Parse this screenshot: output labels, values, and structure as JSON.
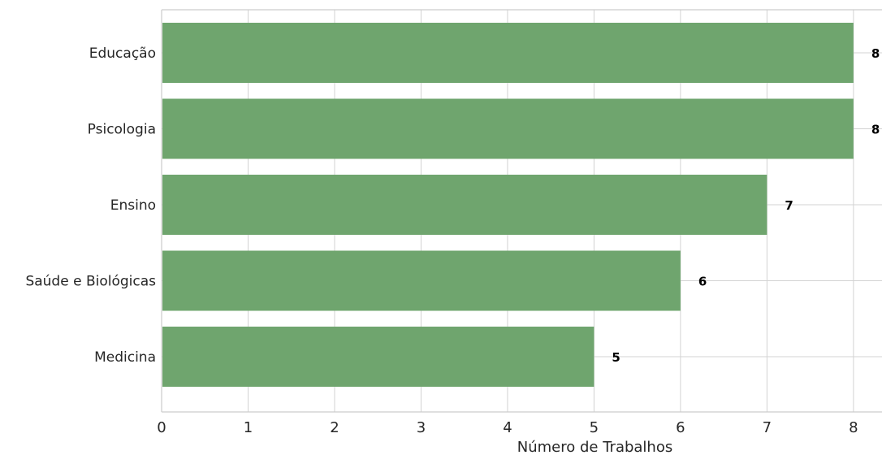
{
  "chart_data": {
    "type": "bar",
    "orientation": "horizontal",
    "title": "",
    "xlabel": "Número de Trabalhos",
    "ylabel": "",
    "categories": [
      "Educação",
      "Psicologia",
      "Ensino",
      "Saúde e Biológicas",
      "Medicina"
    ],
    "values": [
      8,
      8,
      7,
      6,
      5
    ],
    "data_labels": [
      "8",
      "8",
      "7",
      "6",
      "5"
    ],
    "xlim": [
      0,
      8.33
    ],
    "xticks": [
      0,
      1,
      2,
      3,
      4,
      5,
      6,
      7,
      8
    ],
    "grid": true,
    "legend": "none",
    "colors": {
      "bar": "#6fa56e",
      "grid": "#d3d3d3",
      "text": "#262626",
      "value_text": "#000000"
    }
  }
}
